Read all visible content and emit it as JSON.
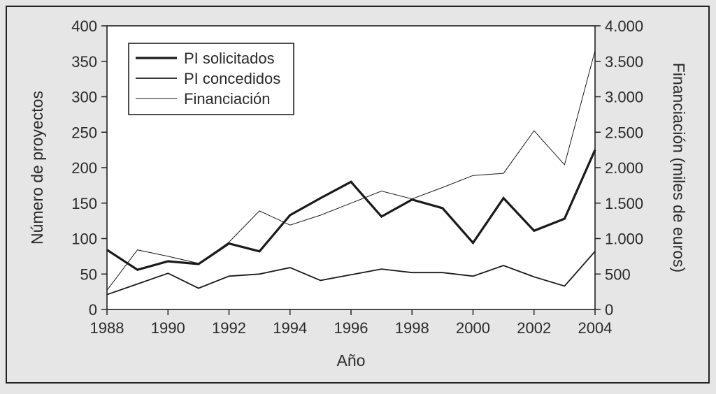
{
  "chart_data": {
    "type": "line",
    "title": "",
    "xlabel": "Año",
    "ylabel_left": "Número de proyectos",
    "ylabel_right": "Financiación (miles de euros)",
    "x": [
      1988,
      1989,
      1990,
      1991,
      1992,
      1993,
      1994,
      1995,
      1996,
      1997,
      1998,
      1999,
      2000,
      2001,
      2002,
      2003,
      2004
    ],
    "xlim": [
      1988,
      2004
    ],
    "xticks": [
      1988,
      1990,
      1992,
      1994,
      1996,
      1998,
      2000,
      2002,
      2004
    ],
    "xtick_labels": [
      "1988",
      "1990",
      "1992",
      "1994",
      "1996",
      "1998",
      "2000",
      "2002",
      "2004"
    ],
    "ylim_left": [
      0,
      400
    ],
    "yticks_left": [
      0,
      50,
      100,
      150,
      200,
      250,
      300,
      350,
      400
    ],
    "ytick_labels_left": [
      "0",
      "50",
      "100",
      "150",
      "200",
      "250",
      "300",
      "350",
      "400"
    ],
    "ylim_right": [
      0,
      4000
    ],
    "yticks_right": [
      0,
      500,
      1000,
      1500,
      2000,
      2500,
      3000,
      3500,
      4000
    ],
    "ytick_labels_right": [
      "0",
      "500",
      "1.000",
      "1.500",
      "2.000",
      "2.500",
      "3.000",
      "3.500",
      "4.000"
    ],
    "grid": false,
    "legend_position": "top-left",
    "series": [
      {
        "name": "PI solicitados",
        "axis": "left",
        "line_style": "thick",
        "values": [
          84,
          56,
          68,
          64,
          93,
          82,
          133,
          157,
          180,
          131,
          155,
          143,
          94,
          157,
          111,
          128,
          225
        ]
      },
      {
        "name": "PI concedidos",
        "axis": "left",
        "line_style": "medium",
        "values": [
          21,
          36,
          51,
          30,
          47,
          50,
          59,
          41,
          49,
          57,
          52,
          52,
          47,
          62,
          46,
          33,
          82
        ]
      },
      {
        "name": "Financiación",
        "axis": "right",
        "line_style": "thin",
        "values": [
          270,
          840,
          750,
          650,
          950,
          1390,
          1190,
          1330,
          1500,
          1670,
          1560,
          1720,
          1890,
          1920,
          2520,
          2040,
          3650
        ]
      }
    ],
    "colors": {
      "background": "#e6e6e6",
      "plot_background": "#ffffff",
      "frame": "#222222",
      "line": "#1a1a1a"
    }
  }
}
